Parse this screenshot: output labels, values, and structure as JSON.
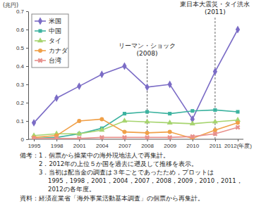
{
  "chart_data": {
    "type": "line",
    "y_label": "(兆円)",
    "categories": [
      "1995",
      "1998",
      "2001",
      "2004",
      "2007",
      "2008",
      "2009",
      "2010",
      "2011",
      "2012(年度)"
    ],
    "series": [
      {
        "name": "米国",
        "color": "#7b6cc6",
        "marker": "diamond",
        "values": [
          0.09,
          0.225,
          0.29,
          0.355,
          0.4,
          0.285,
          0.3,
          0.11,
          0.37,
          0.6
        ]
      },
      {
        "name": "中国",
        "color": "#3db3a0",
        "marker": "square",
        "values": [
          0.005,
          0.01,
          0.03,
          0.06,
          0.14,
          0.15,
          0.14,
          0.155,
          0.16,
          0.15
        ]
      },
      {
        "name": "タイ",
        "color": "#a6d46e",
        "marker": "triangle",
        "values": [
          0.02,
          0.03,
          0.03,
          0.05,
          0.1,
          0.095,
          0.09,
          0.085,
          0.095,
          0.105
        ]
      },
      {
        "name": "カナダ",
        "color": "#f0a048",
        "marker": "circle",
        "values": [
          0.01,
          0.02,
          0.1,
          0.11,
          0.04,
          0.035,
          0.04,
          0.005,
          0.05,
          0.09
        ]
      },
      {
        "name": "台湾",
        "color": "#e8908c",
        "marker": "x",
        "values": [
          0.005,
          0.005,
          0.005,
          0.01,
          0.01,
          0.01,
          0.01,
          0.015,
          0.03,
          0.065
        ]
      }
    ],
    "ylim": [
      0,
      0.7
    ],
    "yticks": [
      0,
      0.1,
      0.2,
      0.3,
      0.4,
      0.5,
      0.6,
      0.7
    ],
    "grid": false,
    "legend": "top-left",
    "annotations": [
      {
        "at": "2008",
        "lines": [
          "リーマン・ショック",
          "(2008)"
        ]
      },
      {
        "at": "2011",
        "lines": [
          "東日本大震災・タイ洪水",
          "(2011)"
        ]
      }
    ],
    "notes_label": "備考：",
    "notes": [
      [
        "1．個票から操業中の海外現地法人で再集計。"
      ],
      [
        "2．2012年の上位５か国を過去に遡及して推移を表示。"
      ],
      [
        "3．当初は配当金の調査は３年ごとであったため，プロットは",
        "1995，1998，2001，2004，2007，2008，2009，2010，2011，",
        "2012の各年度。"
      ]
    ],
    "source": "資料：経済産業省「海外事業活動基本調査」の個票から再集計。"
  }
}
